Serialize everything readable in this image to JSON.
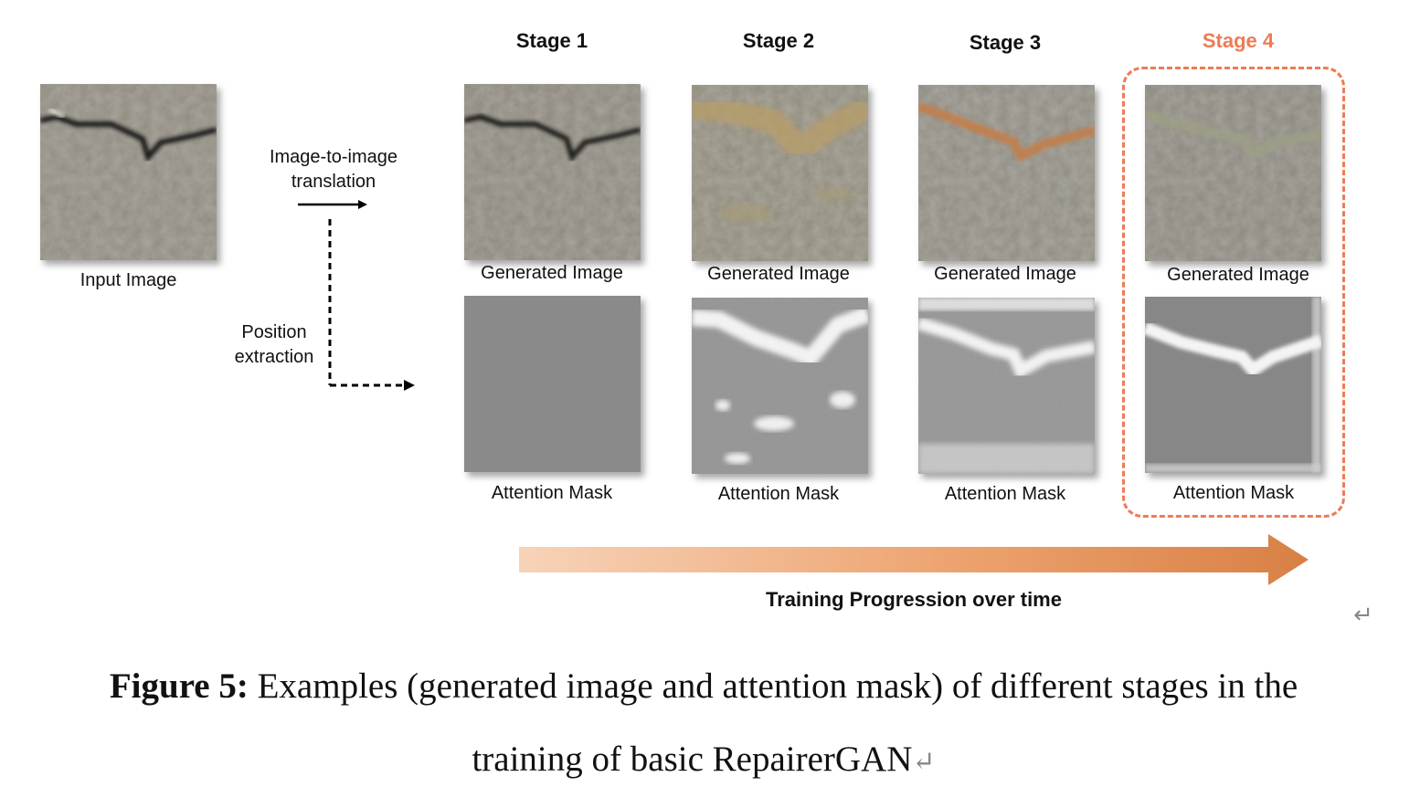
{
  "input": {
    "caption": "Input Image"
  },
  "arrows": {
    "translation_label_1": "Image-to-image",
    "translation_label_2": "translation",
    "position_label_1": "Position",
    "position_label_2": "extraction"
  },
  "stages": [
    {
      "title": "Stage 1",
      "generated_caption": "Generated Image",
      "mask_caption": "Attention Mask"
    },
    {
      "title": "Stage 2",
      "generated_caption": "Generated Image",
      "mask_caption": "Attention Mask"
    },
    {
      "title": "Stage 3",
      "generated_caption": "Generated Image",
      "mask_caption": "Attention Mask"
    },
    {
      "title": "Stage 4",
      "generated_caption": "Generated Image",
      "mask_caption": "Attention Mask"
    }
  ],
  "progression_label": "Training Progression over time",
  "caption": {
    "prefix": "Figure 5:",
    "line1": " Examples (generated image and attention mask) of different stages in the",
    "line2": "training of basic RepairerGAN",
    "return_mark": "↵"
  },
  "colors": {
    "highlight": "#ee7b55",
    "arrow_start": "#f6cfb2",
    "arrow_end": "#d9834a"
  }
}
